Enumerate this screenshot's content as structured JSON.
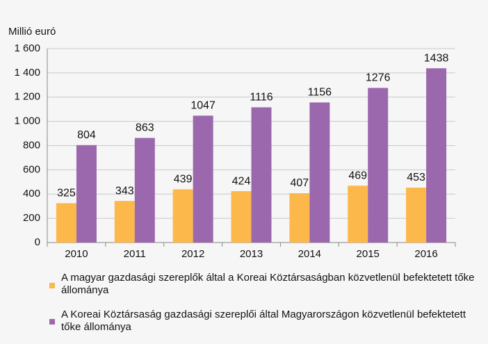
{
  "chart_data": {
    "type": "bar",
    "y_label": "Millió euró",
    "categories": [
      "2010",
      "2011",
      "2012",
      "2013",
      "2014",
      "2015",
      "2016"
    ],
    "series": [
      {
        "name": "A magyar gazdasági szereplők által a Koreai Köztársaságban közvetlenül befektetett tőke állománya",
        "color": "#fdb84c",
        "values": [
          325,
          343,
          439,
          424,
          407,
          469,
          453
        ]
      },
      {
        "name": "A Koreai Köztársaság gazdasági szereplői által Magyarországon közvetlenül befektetett tőke állománya",
        "color": "#9b68ad",
        "values": [
          804,
          863,
          1047,
          1116,
          1156,
          1276,
          1438
        ]
      }
    ],
    "ylim": [
      0,
      1600
    ],
    "yticks": [
      0,
      200,
      400,
      600,
      800,
      {
        "value": 1000,
        "label": "1 000"
      },
      {
        "value": 1200,
        "label": "1 200"
      },
      {
        "value": 1400,
        "label": "1 400"
      },
      {
        "value": 1600,
        "label": "1 600"
      }
    ],
    "grid": true
  }
}
